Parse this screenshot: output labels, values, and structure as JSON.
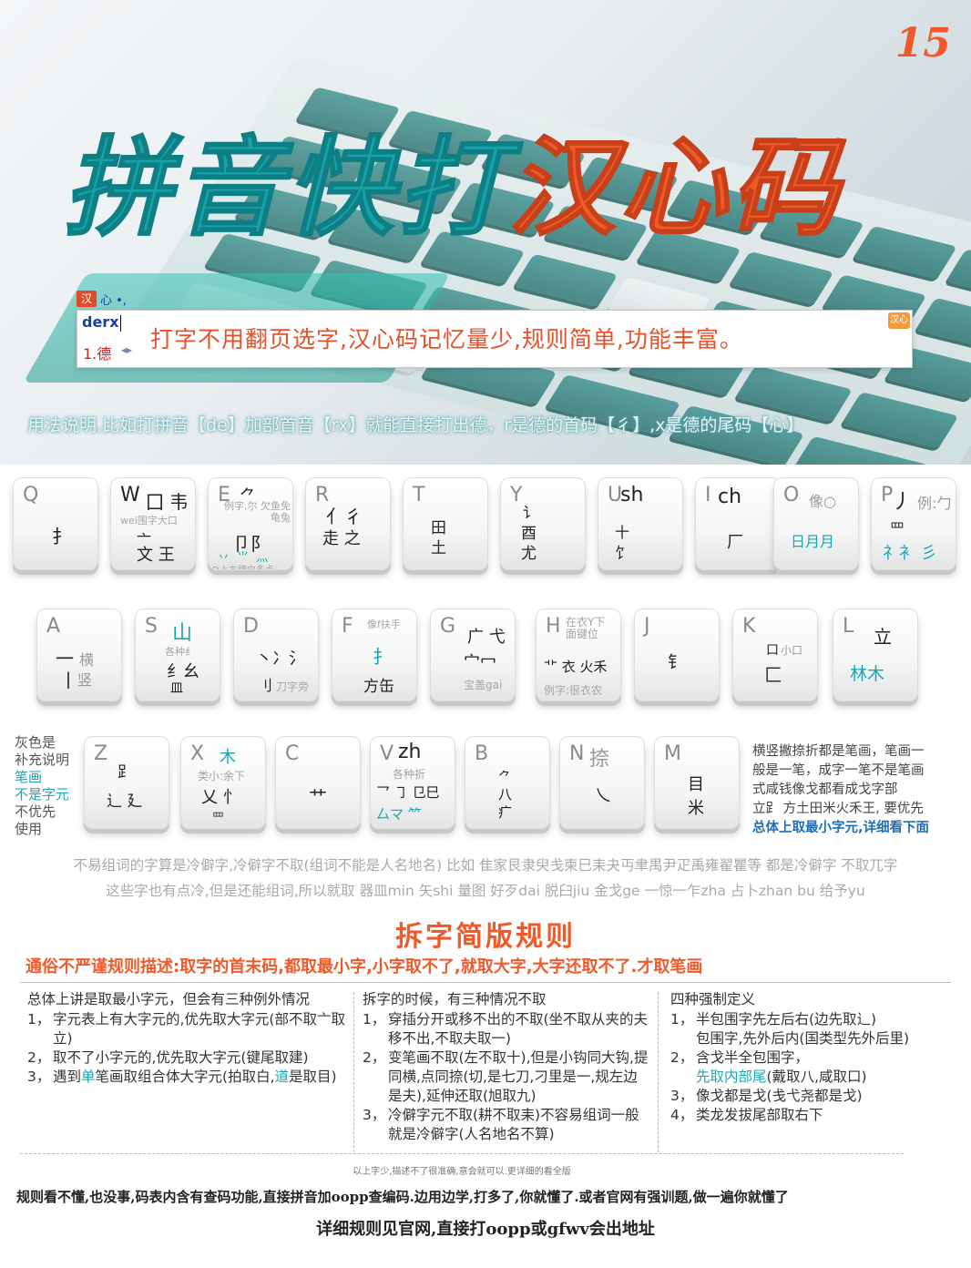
{
  "page_number": "15",
  "title": {
    "part1": "拼音快打",
    "part2": "汉心码"
  },
  "ime": {
    "status_logo": "汉",
    "status_text": "心 •,",
    "input": "derx",
    "candidate": "1.德",
    "arrows": "◂▸",
    "slogan": "打字不用翻页选字,汉心码记忆量少,规则简单,功能丰富。",
    "badge": "汉心"
  },
  "usage_note": "用法说明,比如打拼音【de】加部首音【rx】就能直接打出德，r是德的首码【彳】,x是德的尾码【心】",
  "keys_row1": [
    {
      "letter": "Q",
      "a": "扌"
    },
    {
      "letter": "W",
      "top": "囗 韦",
      "small": "wei围字大口",
      "a": "文 王",
      "a_pre": "亠"
    },
    {
      "letter": "E",
      "top": "⺈",
      "small": "例字,尔 欠鱼免龟兔",
      "a": "卩阝",
      "b": "丷 ⺌ 灬",
      "small2": "D上方横向多点"
    },
    {
      "letter": "R",
      "a": "亻彳",
      "b": "走 之"
    },
    {
      "letter": "T",
      "a": "田",
      "b": "土"
    },
    {
      "letter": "Y",
      "a": "讠",
      "b": "酉",
      "c": "尤"
    },
    {
      "letter": "U",
      "top": "sh",
      "a": "十",
      "b": "饣"
    },
    {
      "letter": "I",
      "top": "ch",
      "a": "厂"
    },
    {
      "letter": "O",
      "top": "像○",
      "a": "日月月"
    },
    {
      "letter": "P",
      "top": "丿",
      "small": "例:勹",
      "a": "罒",
      "b": "礻衤 彡"
    }
  ],
  "keys_row2": [
    {
      "letter": "A",
      "a": "一",
      "b": "丨",
      "a_note": "横",
      "b_note": "竖"
    },
    {
      "letter": "S",
      "top": "山",
      "small": "各种纟",
      "a": "纟幺",
      "b": "皿"
    },
    {
      "letter": "D",
      "a": "丶冫氵",
      "b": "刂",
      "b_note": "刀字旁"
    },
    {
      "letter": "F",
      "small": "像f扶手",
      "a": "扌",
      "b": "方缶"
    },
    {
      "letter": "G",
      "a": "广 弋",
      "b": "宀冖",
      "small": "宝盖gai"
    },
    {
      "letter": "H",
      "small": "在衣Y下 面键位",
      "a": "⻀ 衣 火禾",
      "small2": "例字:很衣农"
    },
    {
      "letter": "J",
      "a": "钅"
    },
    {
      "letter": "K",
      "a": "口",
      "a_note": "小口",
      "b": "匚"
    },
    {
      "letter": "L",
      "top": "立",
      "a": "林木"
    }
  ],
  "keys_row3": [
    {
      "letter": "Z",
      "a": "⻊",
      "b": "辶 廴"
    },
    {
      "letter": "X",
      "top": "⽊",
      "small": "类小:余下",
      "a": "乂 忄",
      "b": "罒"
    },
    {
      "letter": "C",
      "a": "艹"
    },
    {
      "letter": "V",
      "top": "zh",
      "small": "各种折",
      "a": "乛 ㇆ 㔾巳",
      "b": "厶マ ⺮"
    },
    {
      "letter": "B",
      "a": "⺈",
      "b": "八",
      "c": "疒"
    },
    {
      "letter": "N",
      "top": "捺",
      "a": "乀"
    },
    {
      "letter": "M",
      "a": "目",
      "b": "米"
    }
  ],
  "left_note": [
    "灰色是",
    "补充说明",
    "笔画",
    "不是字元",
    "不优先",
    "使用"
  ],
  "right_note": {
    "lines": [
      "横竖撇捺折都是笔画，笔画一",
      "般是一笔，成字一笔不是笔画",
      "式咸钱像戈都看成戈字部",
      "立⻊ 方土田米火禾王, 要优先"
    ],
    "bold": "总体上取最小字元,详细看下面"
  },
  "rare_line1": "不易组词的字算是冷僻字,冷僻字不取(组词不能是人名地名) 比如 隹家艮隶臾戋柬巳耒夬丏聿禺尹疋禹雍翟瞿等 都是冷僻字 不取兀字",
  "rare_line2": "这些字也有点冷,但是还能组词,所以就取    器皿min 矢shi 量图  好歹dai 脱臼jiu 金戈ge   一惊一乍zha 占卜zhan bu 给予yu",
  "rules": {
    "title": "拆字简版规则",
    "subtitle": "通俗不严谨规则描述:取字的首末码,都取最小字,小字取不了,就取大字,大字还取不了.才取笔画",
    "col1": {
      "head": "总体上讲是取最小字元，但会有三种例外情况",
      "items": [
        {
          "n": "1，",
          "t": "字元表上有大字元的,优先取大字元(部不取亠取立)"
        },
        {
          "n": "2，",
          "t": "取不了小字元的,优先取大字元(键尾取建)"
        },
        {
          "n": "3，",
          "t_pre": "遇到",
          "t_hl": "单",
          "t_mid": "笔画取组合体大字元(拍取白,",
          "t_hl2": "道",
          "t_end": "是取目)"
        }
      ]
    },
    "col2": {
      "head": "拆字的时候，有三种情况不取",
      "items": [
        {
          "n": "1，",
          "t": "穿插分开或移不出的不取(坐不取从夹的夫移不出,不取夫取一)"
        },
        {
          "n": "2，",
          "t": "变笔画不取(左不取十),但是小钩同大钩,提同横,点同捺(切,是七刀,刁里是一,规左边是夫),延伸还取(旭取九)"
        },
        {
          "n": "3，",
          "t": "冷僻字元不取(耕不取耒)不容易组词一般就是冷僻字(人名地名不算)"
        }
      ]
    },
    "col3": {
      "head": "四种强制定义",
      "items": [
        {
          "n": "1，",
          "t": "半包围字先左后右(边先取辶)"
        },
        {
          "n": "",
          "t": "包围字,先外后内(国类型先外后里)"
        },
        {
          "n": "2，",
          "t": "含戈半全包围字，"
        },
        {
          "n": "",
          "t_hl": "先取内部尾",
          "t_end": "(戴取八,咸取口)"
        },
        {
          "n": "3，",
          "t": "像戈都是戈(戋弋尧都是戈)"
        },
        {
          "n": "4，",
          "t": "类龙发拔尾部取右下"
        }
      ]
    }
  },
  "small_note": "以上字少,描述不了很准确,意会就可以.更详细的看全版",
  "footer_line1": "规则看不懂,也没事,码表内含有查码功能,直接拼音加oopp查编码.边用边学,打多了,你就懂了.或者官网有强训题,做一遍你就懂了",
  "footer_line2": "详细规则见官网,直接打oopp或gfwv会出地址",
  "colors": {
    "accent": "#f05a2a",
    "teal": "#19a7b5"
  }
}
